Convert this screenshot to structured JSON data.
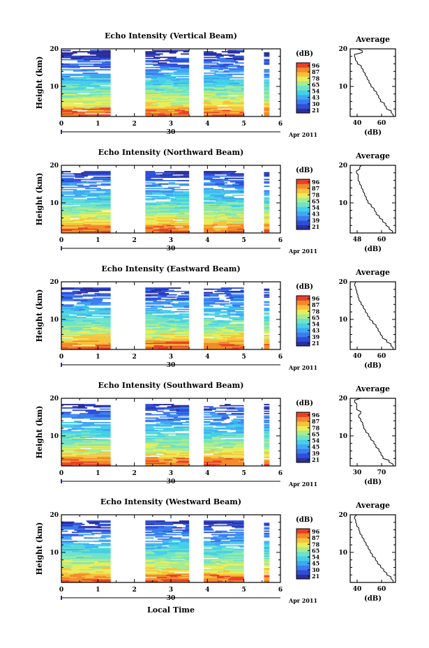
{
  "figure": {
    "date_label": "Apr 2011",
    "day_label": "30",
    "xlabel": "Local Time",
    "average_title": "Average",
    "db_label": "(dB)",
    "colorbar_unit": "(dB)",
    "colorbar_ticks": [
      "96",
      "87",
      "78",
      "65",
      "54",
      "43",
      "30",
      "21"
    ],
    "colormap": [
      "#2b2f9e",
      "#2f4fd8",
      "#3b7cf0",
      "#3fa8f5",
      "#45cfe8",
      "#6fe3c8",
      "#a8ec8f",
      "#e8ee5a",
      "#f8c23a",
      "#f38a2a",
      "#e9402a"
    ]
  },
  "chart_data": [
    {
      "type": "heatmap",
      "title": "Echo Intensity (Vertical Beam)",
      "ylabel": "Height (km)",
      "xlim": [
        0,
        6
      ],
      "ylim": [
        2,
        20
      ],
      "xticks": [
        "0",
        "1",
        "2",
        "3",
        "4",
        "5",
        "6"
      ],
      "yticks": [
        "10",
        "20"
      ],
      "data_blocks_hours": [
        [
          0,
          1.35
        ],
        [
          2.3,
          3.5
        ],
        [
          3.9,
          5.0
        ],
        [
          5.55,
          5.7
        ]
      ],
      "colorbar_ticks": [
        "96",
        "87",
        "78",
        "65",
        "54",
        "43",
        "30",
        "21"
      ],
      "average": {
        "title": "Average",
        "xlabel": "(dB)",
        "xticks": [
          "40",
          "60"
        ],
        "yticks": [
          "10",
          "20"
        ],
        "profile": {
          "height_km": [
            2,
            3,
            4,
            5,
            6,
            7,
            8,
            9,
            10,
            11,
            12,
            13,
            14,
            15,
            16,
            17,
            18,
            19,
            20
          ],
          "db": [
            75,
            73,
            68,
            66,
            62,
            60,
            58,
            55,
            52,
            50,
            48,
            46,
            44,
            42,
            38,
            36,
            35,
            43,
            38
          ]
        }
      }
    },
    {
      "type": "heatmap",
      "title": "Echo Intensity (Northward Beam)",
      "ylabel": "Height (km)",
      "xlim": [
        0,
        6
      ],
      "ylim": [
        2,
        20
      ],
      "xticks": [
        "0",
        "1",
        "2",
        "3",
        "4",
        "5",
        "6"
      ],
      "yticks": [
        "10",
        "20"
      ],
      "data_blocks_hours": [
        [
          0,
          1.35
        ],
        [
          2.3,
          3.5
        ],
        [
          3.9,
          5.0
        ],
        [
          5.55,
          5.7
        ]
      ],
      "colorbar_ticks": [
        "96",
        "87",
        "78",
        "65",
        "54",
        "43",
        "39",
        "21"
      ],
      "average": {
        "title": "Average",
        "xlabel": "(dB)",
        "xticks": [
          "48",
          "60"
        ],
        "yticks": [
          "10",
          "20"
        ],
        "profile": {
          "height_km": [
            2,
            3,
            4,
            5,
            6,
            7,
            8,
            9,
            10,
            11,
            12,
            13,
            14,
            15,
            16,
            17,
            18,
            19,
            20
          ],
          "db": [
            65,
            63,
            61,
            59,
            57,
            55,
            54,
            52,
            50,
            49,
            48,
            47,
            46,
            45,
            44,
            44,
            43,
            45,
            46
          ]
        }
      }
    },
    {
      "type": "heatmap",
      "title": "Echo Intensity (Eastward Beam)",
      "ylabel": "Height (km)",
      "xlim": [
        0,
        6
      ],
      "ylim": [
        2,
        20
      ],
      "xticks": [
        "0",
        "1",
        "2",
        "3",
        "4",
        "5",
        "6"
      ],
      "yticks": [
        "10",
        "20"
      ],
      "data_blocks_hours": [
        [
          0,
          1.35
        ],
        [
          2.3,
          3.5
        ],
        [
          3.9,
          5.0
        ],
        [
          5.55,
          5.7
        ]
      ],
      "colorbar_ticks": [
        "96",
        "87",
        "78",
        "65",
        "54",
        "43",
        "39",
        "21"
      ],
      "average": {
        "title": "Average",
        "xlabel": "(dB)",
        "xticks": [
          "40",
          "60"
        ],
        "yticks": [
          "10",
          "20"
        ],
        "profile": {
          "height_km": [
            2,
            3,
            4,
            5,
            6,
            7,
            8,
            9,
            10,
            11,
            12,
            13,
            14,
            15,
            16,
            17,
            18,
            19,
            20
          ],
          "db": [
            72,
            70,
            66,
            62,
            60,
            58,
            56,
            53,
            50,
            48,
            46,
            44,
            42,
            40,
            39,
            38,
            37,
            36,
            37
          ]
        }
      }
    },
    {
      "type": "heatmap",
      "title": "Echo Intensity (Southward Beam)",
      "ylabel": "Height (km)",
      "xlim": [
        0,
        6
      ],
      "ylim": [
        2,
        20
      ],
      "xticks": [
        "0",
        "1",
        "2",
        "3",
        "4",
        "5",
        "6"
      ],
      "yticks": [
        "10",
        "20"
      ],
      "data_blocks_hours": [
        [
          0,
          1.35
        ],
        [
          2.3,
          3.5
        ],
        [
          3.9,
          5.0
        ],
        [
          5.55,
          5.7
        ]
      ],
      "colorbar_ticks": [
        "96",
        "87",
        "78",
        "65",
        "54",
        "45",
        "39",
        "21"
      ],
      "average": {
        "title": "Average",
        "xlabel": "(dB)",
        "xticks": [
          "30",
          "70"
        ],
        "yticks": [
          "10",
          "20"
        ],
        "profile": {
          "height_km": [
            2,
            3,
            4,
            5,
            6,
            7,
            8,
            9,
            10,
            11,
            12,
            13,
            14,
            15,
            16,
            17,
            18,
            19,
            20
          ],
          "db": [
            72,
            68,
            62,
            60,
            58,
            55,
            53,
            50,
            48,
            45,
            43,
            42,
            40,
            38,
            40,
            36,
            36,
            34,
            40
          ]
        }
      }
    },
    {
      "type": "heatmap",
      "title": "Echo Intensity (Westward Beam)",
      "ylabel": "Height (km)",
      "xlim": [
        0,
        6
      ],
      "ylim": [
        2,
        20
      ],
      "xticks": [
        "0",
        "1",
        "2",
        "3",
        "4",
        "5",
        "6"
      ],
      "yticks": [
        "10",
        "20"
      ],
      "data_blocks_hours": [
        [
          0,
          1.35
        ],
        [
          2.3,
          3.5
        ],
        [
          3.9,
          5.0
        ],
        [
          5.55,
          5.7
        ]
      ],
      "colorbar_ticks": [
        "96",
        "87",
        "78",
        "65",
        "54",
        "45",
        "30",
        "21"
      ],
      "average": {
        "title": "Average",
        "xlabel": "(dB)",
        "xticks": [
          "40",
          "60"
        ],
        "yticks": [
          "10",
          "20"
        ],
        "profile": {
          "height_km": [
            2,
            3,
            4,
            5,
            6,
            7,
            8,
            9,
            10,
            11,
            12,
            13,
            14,
            15,
            16,
            17,
            18,
            19,
            20
          ],
          "db": [
            72,
            70,
            66,
            63,
            60,
            57,
            55,
            52,
            50,
            48,
            46,
            44,
            42,
            40,
            39,
            37,
            36,
            35,
            37
          ]
        }
      }
    }
  ]
}
